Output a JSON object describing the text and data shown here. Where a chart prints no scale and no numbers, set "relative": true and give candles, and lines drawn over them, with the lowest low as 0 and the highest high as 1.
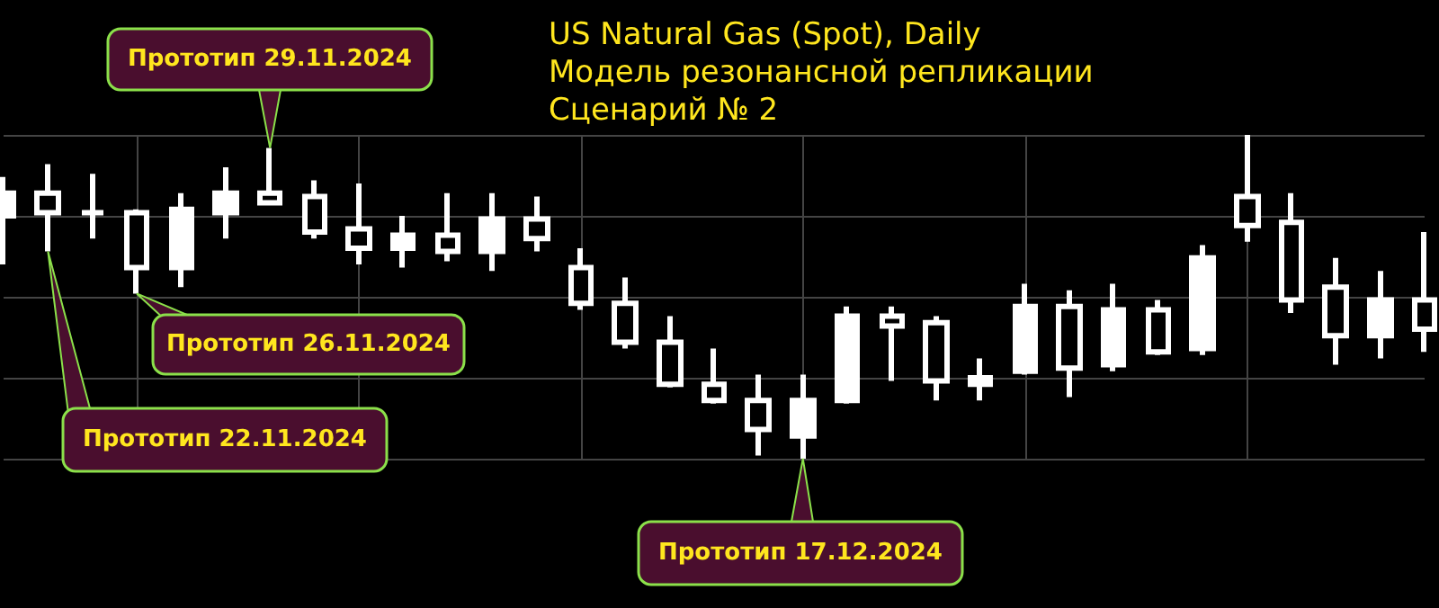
{
  "chart_data": {
    "type": "candlestick",
    "title": "US Natural Gas (Spot), Daily",
    "subtitle": "Модель резонансной репликации\nСценарий № 2",
    "relative": true,
    "color": "#ffffff",
    "grid": true,
    "categories": [
      null,
      null,
      null,
      null,
      null,
      null,
      null,
      null,
      null,
      null,
      null,
      null,
      null,
      null,
      null,
      null,
      null,
      null,
      null,
      null,
      null,
      null,
      null,
      null,
      null,
      null,
      null,
      null,
      null,
      null,
      null,
      null,
      null
    ],
    "ohlc": [
      [
        0.75,
        0.87,
        0.6,
        0.82
      ],
      [
        0.82,
        0.91,
        0.64,
        0.76
      ],
      [
        0.76,
        0.88,
        0.68,
        0.76
      ],
      [
        0.76,
        0.77,
        0.51,
        0.59
      ],
      [
        0.59,
        0.82,
        0.53,
        0.77
      ],
      [
        0.76,
        0.9,
        0.68,
        0.82
      ],
      [
        0.82,
        0.96,
        0.79,
        0.79
      ],
      [
        0.81,
        0.86,
        0.68,
        0.7
      ],
      [
        0.71,
        0.85,
        0.6,
        0.65
      ],
      [
        0.65,
        0.75,
        0.59,
        0.69
      ],
      [
        0.69,
        0.82,
        0.61,
        0.64
      ],
      [
        0.64,
        0.82,
        0.58,
        0.74
      ],
      [
        0.74,
        0.81,
        0.64,
        0.68
      ],
      [
        0.59,
        0.65,
        0.46,
        0.48
      ],
      [
        0.48,
        0.56,
        0.34,
        0.36
      ],
      [
        0.36,
        0.44,
        0.22,
        0.23
      ],
      [
        0.23,
        0.34,
        0.17,
        0.18
      ],
      [
        0.18,
        0.26,
        0.01,
        0.09
      ],
      [
        0.07,
        0.26,
        0.0,
        0.18
      ],
      [
        0.18,
        0.47,
        0.17,
        0.44
      ],
      [
        0.44,
        0.47,
        0.24,
        0.41
      ],
      [
        0.42,
        0.44,
        0.18,
        0.24
      ],
      [
        0.23,
        0.31,
        0.18,
        0.25
      ],
      [
        0.27,
        0.54,
        0.26,
        0.47
      ],
      [
        0.47,
        0.52,
        0.19,
        0.28
      ],
      [
        0.29,
        0.54,
        0.27,
        0.46
      ],
      [
        0.46,
        0.49,
        0.32,
        0.33
      ],
      [
        0.34,
        0.66,
        0.32,
        0.62
      ],
      [
        0.81,
        1.0,
        0.67,
        0.72
      ],
      [
        0.73,
        0.82,
        0.45,
        0.49
      ],
      [
        0.53,
        0.62,
        0.29,
        0.38
      ],
      [
        0.38,
        0.58,
        0.31,
        0.49
      ],
      [
        0.49,
        0.7,
        0.33,
        0.4
      ]
    ],
    "annotations": [
      "Прототип 29.11.2024",
      "Прототип 26.11.2024",
      "Прототип 22.11.2024",
      "Прототип 17.12.2024"
    ]
  }
}
